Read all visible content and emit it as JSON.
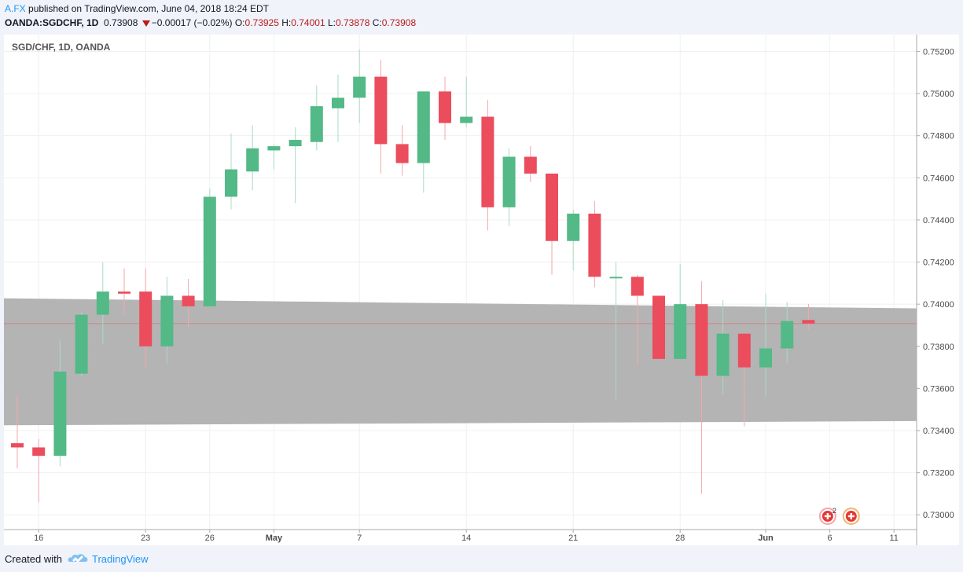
{
  "header": {
    "author": "A.FX",
    "published_text": "published on TradingView.com, June 04, 2018 18:24 EDT",
    "symbol": "OANDA:SGDCHF, 1D",
    "last": "0.73908",
    "change": "−0.00017 (−0.02%)",
    "o_label": "O:",
    "o_value": "0.73925",
    "h_label": "H:",
    "h_value": "0.74001",
    "l_label": "L:",
    "l_value": "0.73878",
    "c_label": "C:",
    "c_value": "0.73908"
  },
  "footer": {
    "created_with": "Created with",
    "brand": "TradingView"
  },
  "colors": {
    "up": "#53b987",
    "down": "#eb4d5c",
    "up_wick": "#a8dcc2",
    "down_wick": "#f5a6ae",
    "band": "#aaaaaa",
    "grid": "#eef0f3"
  },
  "chart_data": {
    "type": "candlestick",
    "title": "SGD/CHF, 1D, OANDA",
    "ylim": [
      0.7293,
      0.7528
    ],
    "y_ticks": [
      "0.73000",
      "0.73200",
      "0.73400",
      "0.73600",
      "0.73800",
      "0.74000",
      "0.74200",
      "0.74400",
      "0.74600",
      "0.74800",
      "0.75000",
      "0.75200"
    ],
    "x_ticks": [
      {
        "index": 1,
        "label": "16",
        "bold": false
      },
      {
        "index": 6,
        "label": "23",
        "bold": false
      },
      {
        "index": 9,
        "label": "26",
        "bold": false
      },
      {
        "index": 12,
        "label": "May",
        "bold": true
      },
      {
        "index": 16,
        "label": "7",
        "bold": false
      },
      {
        "index": 21,
        "label": "14",
        "bold": false
      },
      {
        "index": 26,
        "label": "21",
        "bold": false
      },
      {
        "index": 31,
        "label": "28",
        "bold": false
      },
      {
        "index": 35,
        "label": "Jun",
        "bold": true
      },
      {
        "index": 38,
        "label": "6",
        "bold": false
      },
      {
        "index": 41,
        "label": "11",
        "bold": false
      }
    ],
    "candles": [
      {
        "o": 0.7334,
        "h": 0.7357,
        "l": 0.7322,
        "c": 0.7332
      },
      {
        "o": 0.7332,
        "h": 0.7336,
        "l": 0.7306,
        "c": 0.7328
      },
      {
        "o": 0.7328,
        "h": 0.7383,
        "l": 0.7323,
        "c": 0.7368
      },
      {
        "o": 0.7367,
        "h": 0.7396,
        "l": 0.7366,
        "c": 0.7395
      },
      {
        "o": 0.7395,
        "h": 0.742,
        "l": 0.7381,
        "c": 0.7406
      },
      {
        "o": 0.7406,
        "h": 0.7417,
        "l": 0.7395,
        "c": 0.7405
      },
      {
        "o": 0.7406,
        "h": 0.7417,
        "l": 0.737,
        "c": 0.738
      },
      {
        "o": 0.738,
        "h": 0.7413,
        "l": 0.7372,
        "c": 0.7404
      },
      {
        "o": 0.7404,
        "h": 0.7412,
        "l": 0.7389,
        "c": 0.7399
      },
      {
        "o": 0.7399,
        "h": 0.7455,
        "l": 0.7399,
        "c": 0.7451
      },
      {
        "o": 0.7451,
        "h": 0.7481,
        "l": 0.7445,
        "c": 0.7464
      },
      {
        "o": 0.7463,
        "h": 0.7485,
        "l": 0.7454,
        "c": 0.7474
      },
      {
        "o": 0.7473,
        "h": 0.7476,
        "l": 0.7464,
        "c": 0.7475
      },
      {
        "o": 0.7475,
        "h": 0.7484,
        "l": 0.7448,
        "c": 0.7478
      },
      {
        "o": 0.7477,
        "h": 0.7504,
        "l": 0.7473,
        "c": 0.7494
      },
      {
        "o": 0.7493,
        "h": 0.7509,
        "l": 0.7477,
        "c": 0.7498
      },
      {
        "o": 0.7498,
        "h": 0.7521,
        "l": 0.7486,
        "c": 0.7508
      },
      {
        "o": 0.7508,
        "h": 0.7516,
        "l": 0.7462,
        "c": 0.7476
      },
      {
        "o": 0.7476,
        "h": 0.7485,
        "l": 0.7461,
        "c": 0.7467
      },
      {
        "o": 0.7467,
        "h": 0.7501,
        "l": 0.7453,
        "c": 0.7501
      },
      {
        "o": 0.7501,
        "h": 0.7508,
        "l": 0.7478,
        "c": 0.7486
      },
      {
        "o": 0.7486,
        "h": 0.7508,
        "l": 0.7484,
        "c": 0.7489
      },
      {
        "o": 0.7489,
        "h": 0.7497,
        "l": 0.7435,
        "c": 0.7446
      },
      {
        "o": 0.7446,
        "h": 0.7474,
        "l": 0.7437,
        "c": 0.747
      },
      {
        "o": 0.747,
        "h": 0.7475,
        "l": 0.7458,
        "c": 0.7462
      },
      {
        "o": 0.7462,
        "h": 0.7462,
        "l": 0.7414,
        "c": 0.743
      },
      {
        "o": 0.743,
        "h": 0.7445,
        "l": 0.7416,
        "c": 0.7443
      },
      {
        "o": 0.7443,
        "h": 0.7449,
        "l": 0.7408,
        "c": 0.7413
      },
      {
        "o": 0.7413,
        "h": 0.742,
        "l": 0.7355,
        "c": 0.7413
      },
      {
        "o": 0.7413,
        "h": 0.7414,
        "l": 0.7371,
        "c": 0.7404
      },
      {
        "o": 0.7404,
        "h": 0.7404,
        "l": 0.7374,
        "c": 0.7374
      },
      {
        "o": 0.7374,
        "h": 0.7419,
        "l": 0.7374,
        "c": 0.74
      },
      {
        "o": 0.74,
        "h": 0.7411,
        "l": 0.731,
        "c": 0.7366
      },
      {
        "o": 0.7366,
        "h": 0.7402,
        "l": 0.7357,
        "c": 0.7386
      },
      {
        "o": 0.7386,
        "h": 0.7386,
        "l": 0.7342,
        "c": 0.737
      },
      {
        "o": 0.737,
        "h": 0.7405,
        "l": 0.7356,
        "c": 0.7379
      },
      {
        "o": 0.7379,
        "h": 0.7401,
        "l": 0.7372,
        "c": 0.7392
      },
      {
        "o": 0.73925,
        "h": 0.74001,
        "l": 0.73878,
        "c": 0.73908
      }
    ],
    "band": {
      "start_top": 0.74028,
      "start_bottom": 0.73425,
      "end_top": 0.7398,
      "end_bottom": 0.73445
    },
    "last_price_line": 0.73908,
    "markers": [
      {
        "index": 37.9,
        "kind": "flag-sg",
        "count": "2"
      },
      {
        "index": 39.0,
        "kind": "flag-ch",
        "count": ""
      }
    ]
  }
}
